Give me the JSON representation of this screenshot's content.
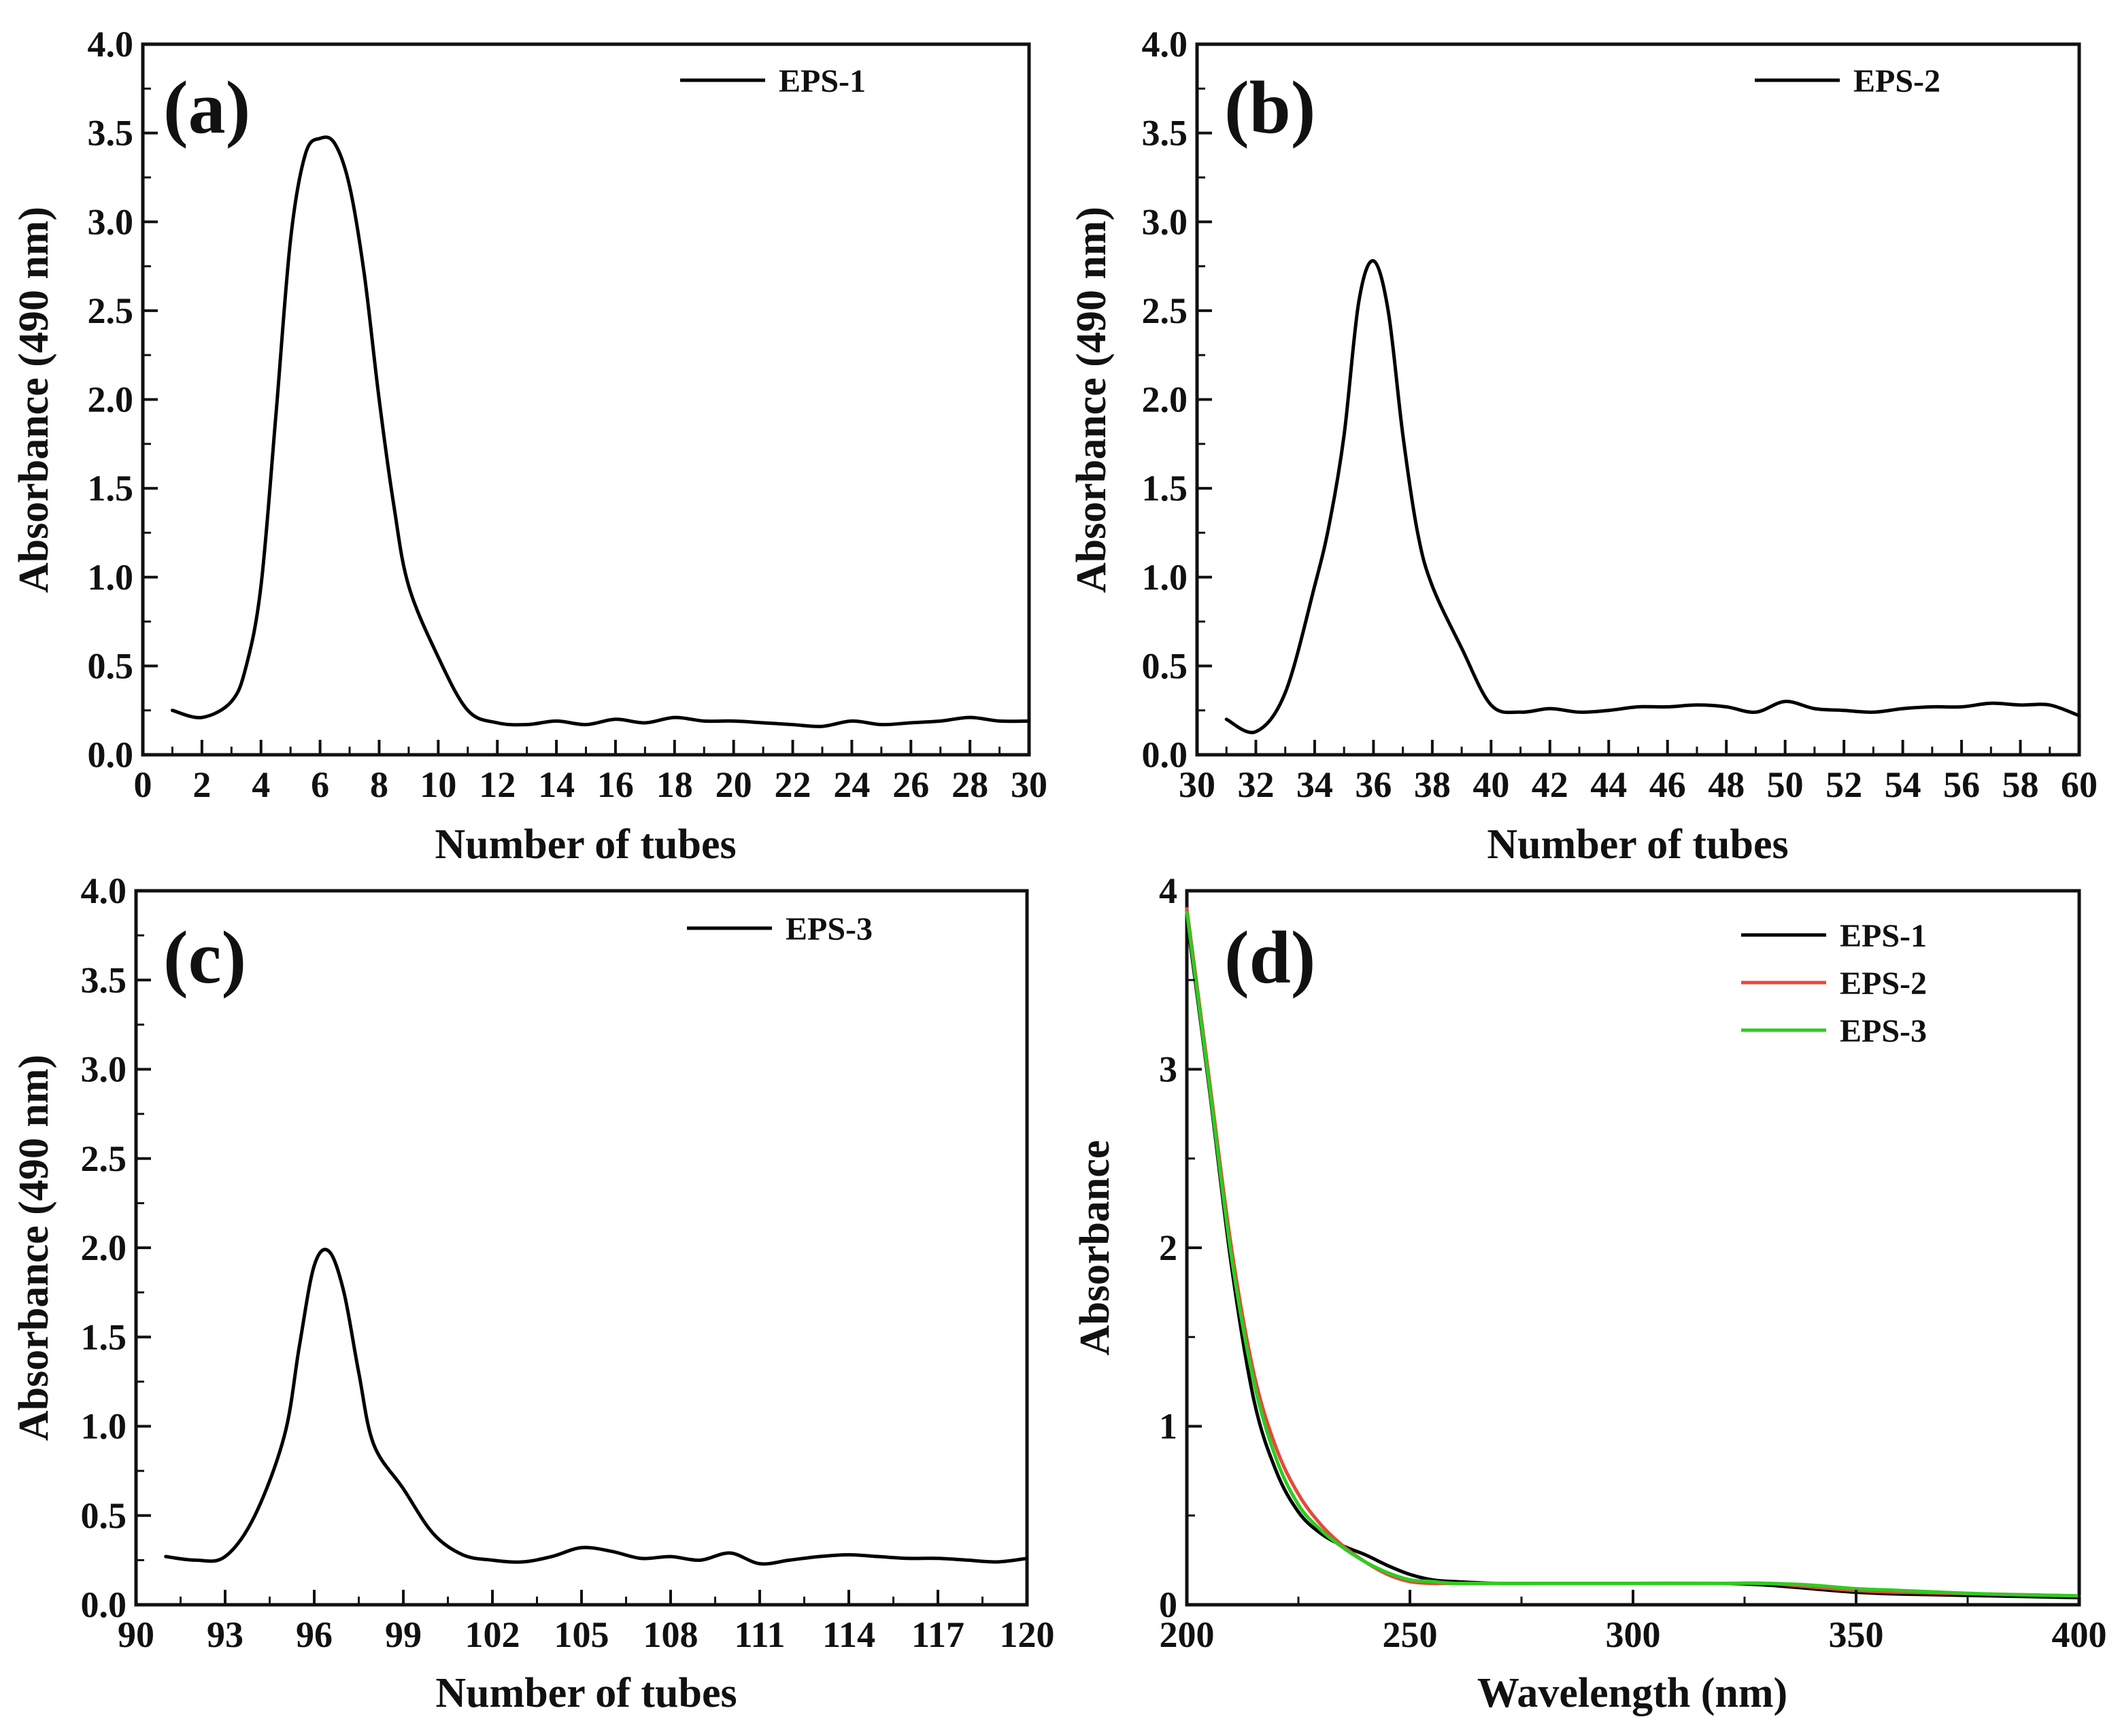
{
  "chart_data": [
    {
      "panel": "(a)",
      "type": "line",
      "xlabel": "Number of tubes",
      "ylabel": "Absorbance (490 nm)",
      "xlim": [
        0,
        30
      ],
      "ylim": [
        0.0,
        4.0
      ],
      "xticks": [
        "0",
        "2",
        "4",
        "6",
        "8",
        "10",
        "12",
        "14",
        "16",
        "18",
        "20",
        "22",
        "24",
        "26",
        "28",
        "30"
      ],
      "yticks": [
        "0.0",
        "0.5",
        "1.0",
        "1.5",
        "2.0",
        "2.5",
        "3.0",
        "3.5",
        "4.0"
      ],
      "series": [
        {
          "name": "EPS-1",
          "color": "#000000",
          "x": [
            1,
            2,
            3,
            3.5,
            4,
            4.5,
            5,
            5.5,
            6,
            6.5,
            7,
            7.5,
            8,
            8.5,
            9,
            10,
            11,
            12,
            13,
            14,
            15,
            16,
            17,
            18,
            19,
            20,
            21,
            22,
            23,
            24,
            25,
            26,
            27,
            28,
            29,
            30
          ],
          "y": [
            0.25,
            0.21,
            0.3,
            0.5,
            0.95,
            1.9,
            2.9,
            3.38,
            3.47,
            3.44,
            3.2,
            2.7,
            2.0,
            1.4,
            0.95,
            0.55,
            0.25,
            0.18,
            0.17,
            0.19,
            0.17,
            0.2,
            0.18,
            0.21,
            0.19,
            0.19,
            0.18,
            0.17,
            0.16,
            0.19,
            0.17,
            0.18,
            0.19,
            0.21,
            0.19,
            0.19
          ]
        }
      ]
    },
    {
      "panel": "(b)",
      "type": "line",
      "xlabel": "Number of tubes",
      "ylabel": "Absorbance (490 nm)",
      "xlim": [
        30,
        60
      ],
      "ylim": [
        0.0,
        4.0
      ],
      "xticks": [
        "30",
        "32",
        "34",
        "36",
        "38",
        "40",
        "42",
        "44",
        "46",
        "48",
        "50",
        "52",
        "54",
        "56",
        "58",
        "60"
      ],
      "yticks": [
        "0.0",
        "0.5",
        "1.0",
        "1.5",
        "2.0",
        "2.5",
        "3.0",
        "3.5",
        "4.0"
      ],
      "series": [
        {
          "name": "EPS-2",
          "color": "#000000",
          "x": [
            31,
            32,
            33,
            34,
            34.5,
            35,
            35.5,
            36,
            36.5,
            37,
            37.5,
            38,
            39,
            40,
            41,
            42,
            43,
            44,
            45,
            46,
            47,
            48,
            49,
            50,
            51,
            52,
            53,
            54,
            55,
            56,
            57,
            58,
            59,
            60
          ],
          "y": [
            0.2,
            0.13,
            0.35,
            0.95,
            1.3,
            1.8,
            2.55,
            2.78,
            2.5,
            1.8,
            1.25,
            0.95,
            0.6,
            0.28,
            0.24,
            0.26,
            0.24,
            0.25,
            0.27,
            0.27,
            0.28,
            0.27,
            0.24,
            0.3,
            0.26,
            0.25,
            0.24,
            0.26,
            0.27,
            0.27,
            0.29,
            0.28,
            0.28,
            0.22
          ]
        }
      ]
    },
    {
      "panel": "(c)",
      "type": "line",
      "xlabel": "Number of tubes",
      "ylabel": "Absorbance (490 nm)",
      "xlim": [
        90,
        120
      ],
      "ylim": [
        0.0,
        4.0
      ],
      "xticks": [
        "90",
        "93",
        "96",
        "99",
        "102",
        "105",
        "108",
        "111",
        "114",
        "117",
        "120"
      ],
      "yticks": [
        "0.0",
        "0.5",
        "1.0",
        "1.5",
        "2.0",
        "2.5",
        "3.0",
        "3.5",
        "4.0"
      ],
      "series": [
        {
          "name": "EPS-3",
          "color": "#000000",
          "x": [
            91,
            92,
            93,
            94,
            95,
            95.5,
            96,
            96.5,
            97,
            97.5,
            98,
            99,
            100,
            101,
            102,
            103,
            104,
            105,
            106,
            107,
            108,
            109,
            110,
            111,
            112,
            113,
            114,
            115,
            116,
            117,
            118,
            119,
            120
          ],
          "y": [
            0.27,
            0.25,
            0.27,
            0.5,
            0.95,
            1.45,
            1.9,
            1.98,
            1.75,
            1.3,
            0.9,
            0.65,
            0.4,
            0.28,
            0.25,
            0.24,
            0.27,
            0.32,
            0.3,
            0.26,
            0.27,
            0.25,
            0.29,
            0.23,
            0.25,
            0.27,
            0.28,
            0.27,
            0.26,
            0.26,
            0.25,
            0.24,
            0.26
          ]
        }
      ]
    },
    {
      "panel": "(d)",
      "type": "line",
      "xlabel": "Wavelength (nm)",
      "ylabel": "Absorbance",
      "xlim": [
        200,
        400
      ],
      "ylim": [
        0,
        4
      ],
      "xticks": [
        "200",
        "250",
        "300",
        "350",
        "400"
      ],
      "yticks": [
        "0",
        "1",
        "2",
        "3",
        "4"
      ],
      "series": [
        {
          "name": "EPS-1",
          "color": "#000000",
          "x": [
            200,
            205,
            210,
            215,
            220,
            225,
            230,
            235,
            240,
            245,
            250,
            255,
            260,
            270,
            280,
            300,
            320,
            330,
            340,
            350,
            360,
            380,
            400
          ],
          "y": [
            3.85,
            2.9,
            1.9,
            1.15,
            0.75,
            0.52,
            0.4,
            0.33,
            0.28,
            0.22,
            0.17,
            0.14,
            0.13,
            0.12,
            0.12,
            0.12,
            0.12,
            0.11,
            0.09,
            0.07,
            0.06,
            0.05,
            0.04
          ]
        },
        {
          "name": "EPS-2",
          "color": "#e8473c",
          "x": [
            200,
            205,
            210,
            215,
            220,
            225,
            230,
            235,
            240,
            245,
            250,
            255,
            260,
            270,
            280,
            300,
            320,
            330,
            340,
            350,
            360,
            380,
            400
          ],
          "y": [
            3.9,
            2.95,
            2.0,
            1.3,
            0.88,
            0.62,
            0.45,
            0.33,
            0.24,
            0.17,
            0.13,
            0.12,
            0.12,
            0.12,
            0.12,
            0.12,
            0.12,
            0.12,
            0.1,
            0.08,
            0.07,
            0.06,
            0.05
          ]
        },
        {
          "name": "EPS-3",
          "color": "#2ecc1f",
          "x": [
            200,
            205,
            210,
            215,
            220,
            225,
            230,
            235,
            240,
            245,
            250,
            255,
            260,
            270,
            280,
            300,
            320,
            330,
            340,
            350,
            360,
            380,
            400
          ],
          "y": [
            3.88,
            2.92,
            1.95,
            1.25,
            0.82,
            0.56,
            0.42,
            0.32,
            0.24,
            0.18,
            0.14,
            0.13,
            0.12,
            0.12,
            0.12,
            0.12,
            0.12,
            0.12,
            0.11,
            0.09,
            0.08,
            0.06,
            0.05
          ]
        }
      ]
    }
  ]
}
